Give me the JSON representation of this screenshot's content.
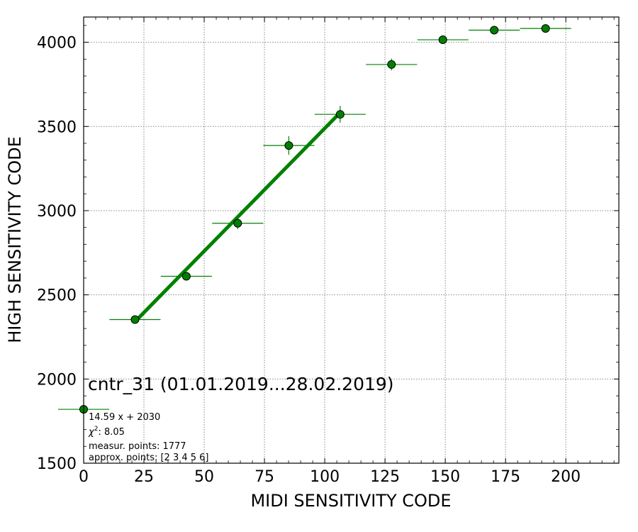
{
  "chart_data": {
    "type": "scatter",
    "xlabel": "MIDI SENSITIVITY CODE",
    "ylabel": "HIGH SENSITIVITY CODE",
    "xlim": [
      0,
      222
    ],
    "ylim": [
      1500,
      4150
    ],
    "xticks": [
      0,
      25,
      50,
      75,
      100,
      125,
      150,
      175,
      200
    ],
    "yticks": [
      1500,
      2000,
      2500,
      3000,
      3500,
      4000
    ],
    "grid": true,
    "marker_color": "#008000",
    "fit_color": "#008000",
    "points": [
      {
        "x": 0.0,
        "y": 1820,
        "xerr": 10.6,
        "yerr": 0
      },
      {
        "x": 21.3,
        "y": 2353,
        "xerr": 10.6,
        "yerr": 10
      },
      {
        "x": 42.6,
        "y": 2610,
        "xerr": 10.6,
        "yerr": 15
      },
      {
        "x": 63.9,
        "y": 2925,
        "xerr": 10.6,
        "yerr": 35
      },
      {
        "x": 85.1,
        "y": 3387,
        "xerr": 10.6,
        "yerr": 55
      },
      {
        "x": 106.4,
        "y": 3572,
        "xerr": 10.6,
        "yerr": 50
      },
      {
        "x": 127.7,
        "y": 3868,
        "xerr": 10.6,
        "yerr": 35
      },
      {
        "x": 149.0,
        "y": 4015,
        "xerr": 10.6,
        "yerr": 0
      },
      {
        "x": 170.3,
        "y": 4072,
        "xerr": 10.6,
        "yerr": 0
      },
      {
        "x": 191.6,
        "y": 4082,
        "xerr": 10.6,
        "yerr": 0
      }
    ],
    "fit": {
      "slope": 14.59,
      "intercept": 2030,
      "x_range": [
        21.3,
        106.4
      ]
    },
    "annotations": {
      "title": "cntr_31 (01.01.2019...28.02.2019)",
      "equation": "14.59 x + 2030",
      "chi2_label": "χ",
      "chi2_sup": "2",
      "chi2_value": ": 8.05",
      "measur_points": "measur. points: 1777",
      "approx_points": "approx. points: [2 3 4 5 6]"
    }
  }
}
